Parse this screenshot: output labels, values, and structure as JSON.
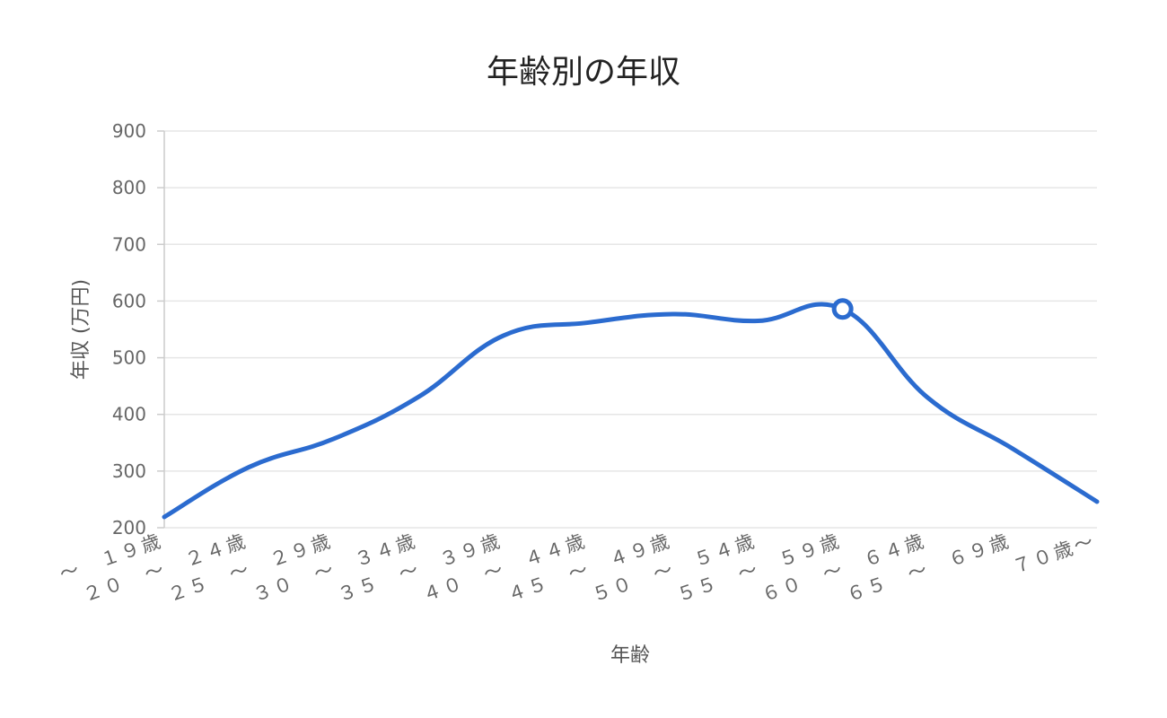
{
  "chart_data": {
    "type": "line",
    "title": "年齢別の年収",
    "xlabel": "年齢",
    "ylabel": "年収 (万円)",
    "ylim": [
      200,
      900
    ],
    "yticks": [
      200,
      300,
      400,
      500,
      600,
      700,
      800,
      900
    ],
    "grid": true,
    "smooth": true,
    "categories": [
      "～　１９歳",
      "２０　～　２４歳",
      "２５　～　２９歳",
      "３０　～　３４歳",
      "３５　～　３９歳",
      "４０　～　４４歳",
      "４５　～　４９歳",
      "５０　～　５４歳",
      "５５　～　５９歳",
      "６０　～　６４歳",
      "６５　～　６９歳",
      "７０歳～"
    ],
    "series": [
      {
        "values": [
          219,
          307,
          357,
          431,
          539,
          562,
          577,
          565,
          586,
          430,
          340,
          246
        ],
        "color": "#2b6bcf",
        "highlight_index": 8
      }
    ]
  }
}
